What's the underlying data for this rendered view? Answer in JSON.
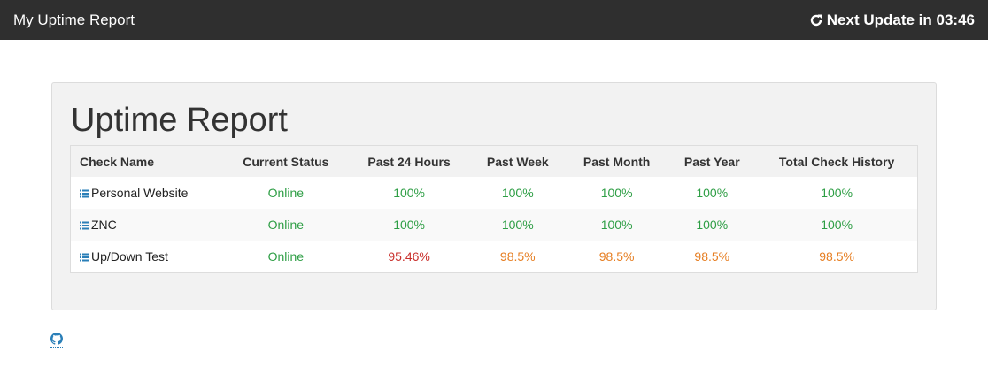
{
  "navbar": {
    "brand": "My Uptime Report",
    "next_update": "Next Update in 03:46",
    "refresh_icon": "refresh-icon"
  },
  "report": {
    "title": "Uptime Report",
    "columns": [
      "Check Name",
      "Current Status",
      "Past 24 Hours",
      "Past Week",
      "Past Month",
      "Past Year",
      "Total Check History"
    ],
    "rows": [
      {
        "name": "Personal Website",
        "status": "Online",
        "day": "100%",
        "week": "100%",
        "month": "100%",
        "year": "100%",
        "total": "100%"
      },
      {
        "name": "ZNC",
        "status": "Online",
        "day": "100%",
        "week": "100%",
        "month": "100%",
        "year": "100%",
        "total": "100%"
      },
      {
        "name": "Up/Down Test",
        "status": "Online",
        "day": "95.46%",
        "week": "98.5%",
        "month": "98.5%",
        "year": "98.5%",
        "total": "98.5%"
      }
    ]
  },
  "footer": {
    "icon": "github-icon"
  },
  "colors": {
    "navbar": "#2f2f2f",
    "good": "#2e9e45",
    "warn": "#e67e22",
    "bad": "#c9302c"
  }
}
